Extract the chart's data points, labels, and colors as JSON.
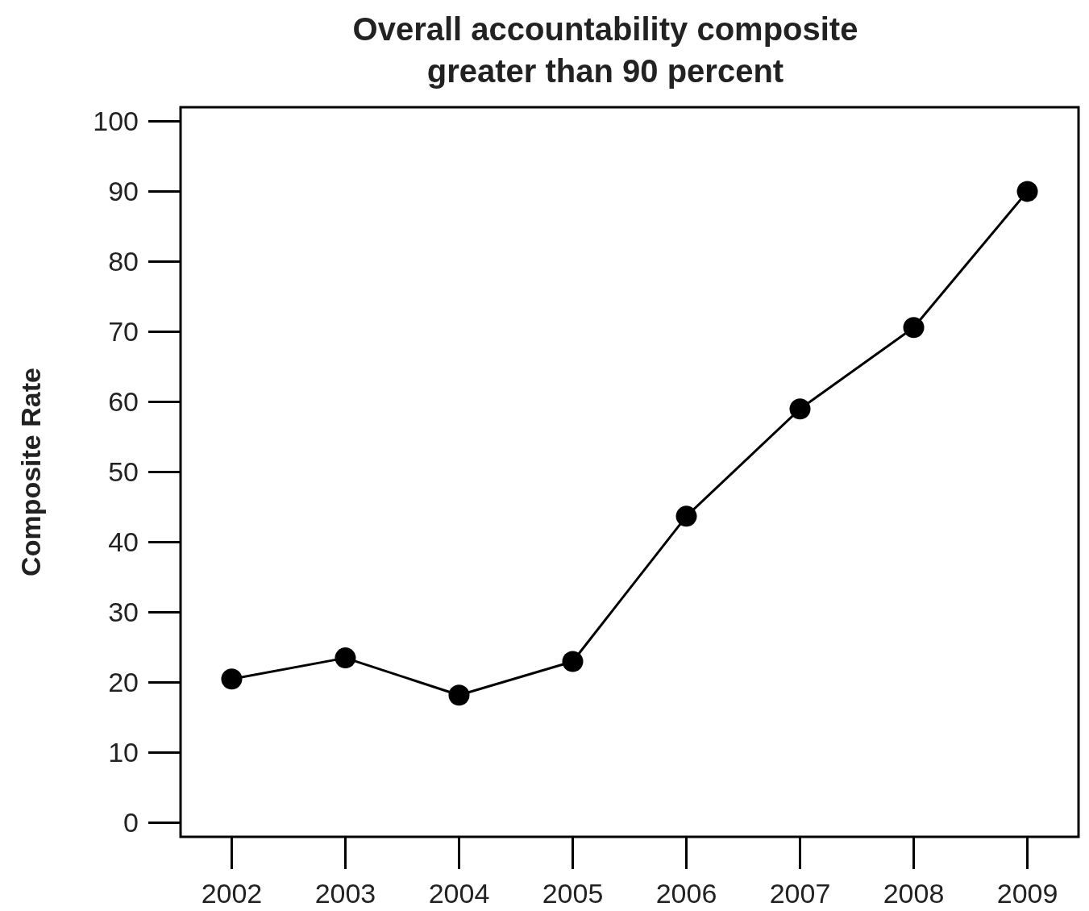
{
  "chart_data": {
    "type": "line",
    "title": "Overall accountability composite\ngreater than 90 percent",
    "ylabel": "Composite Rate",
    "categories": [
      "2002",
      "2003",
      "2004",
      "2005",
      "2006",
      "2007",
      "2008",
      "2009"
    ],
    "series": [
      {
        "color": "#000000",
        "values": [
          20.5,
          23.5,
          18.2,
          23.0,
          43.7,
          59.0,
          70.6,
          90.0
        ]
      }
    ],
    "ylim": [
      -2,
      102
    ],
    "yticks": [
      0,
      10,
      20,
      30,
      40,
      50,
      60,
      70,
      80,
      90,
      100
    ],
    "grid": false,
    "marker": "circle",
    "line_style": "solid"
  }
}
